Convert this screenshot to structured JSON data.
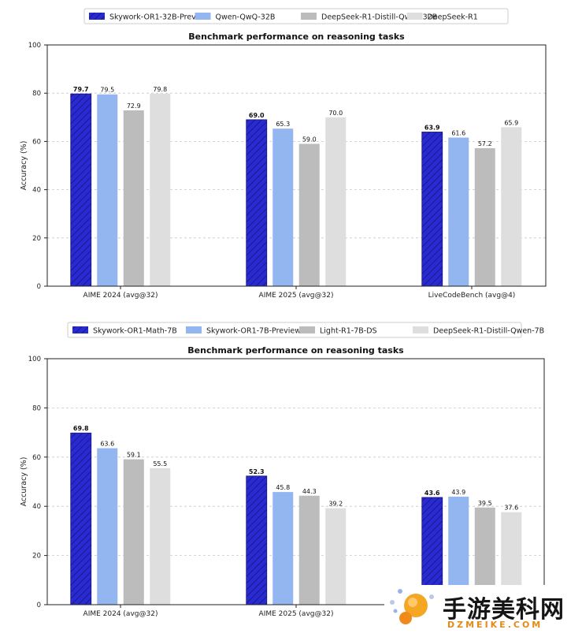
{
  "charts": [
    {
      "legend": [
        "Skywork-OR1-32B-Preview",
        "Qwen-QwQ-32B",
        "DeepSeek-R1-Distill-Qwen-32B",
        "DeepSeek-R1"
      ],
      "title": "Benchmark performance on reasoning tasks",
      "ylabel": "Accuracy (%)",
      "yticks": [
        "0",
        "20",
        "40",
        "60",
        "80",
        "100"
      ],
      "categories": [
        "AIME 2024 (avg@32)",
        "AIME 2025 (avg@32)",
        "LiveCodeBench (avg@4)"
      ],
      "value_labels": [
        [
          "79.7",
          "79.5",
          "72.9",
          "79.8"
        ],
        [
          "69.0",
          "65.3",
          "59.0",
          "70.0"
        ],
        [
          "63.9",
          "61.6",
          "57.2",
          "65.9"
        ]
      ]
    },
    {
      "legend": [
        "Skywork-OR1-Math-7B",
        "Skywork-OR1-7B-Preview",
        "Light-R1-7B-DS",
        "DeepSeek-R1-Distill-Qwen-7B"
      ],
      "title": "Benchmark performance on reasoning tasks",
      "ylabel": "Accuracy (%)",
      "yticks": [
        "0",
        "20",
        "40",
        "60",
        "80",
        "100"
      ],
      "categories": [
        "AIME 2024 (avg@32)",
        "AIME 2025 (avg@32)",
        ""
      ],
      "value_labels": [
        [
          "69.8",
          "63.6",
          "59.1",
          "55.5"
        ],
        [
          "52.3",
          "45.8",
          "44.3",
          "39.2"
        ],
        [
          "43.6",
          "43.9",
          "39.5",
          "37.6"
        ]
      ]
    }
  ],
  "chart_data": [
    {
      "type": "bar",
      "title": "Benchmark performance on reasoning tasks",
      "xlabel": "",
      "ylabel": "Accuracy (%)",
      "ylim": [
        0,
        100
      ],
      "grid": true,
      "legend_position": "top",
      "categories": [
        "AIME 2024 (avg@32)",
        "AIME 2025 (avg@32)",
        "LiveCodeBench (avg@4)"
      ],
      "series": [
        {
          "name": "Skywork-OR1-32B-Preview",
          "color": "#2a2ad2",
          "hatched": true,
          "values": [
            79.7,
            69.0,
            63.9
          ]
        },
        {
          "name": "Qwen-QwQ-32B",
          "color": "#93b5f0",
          "values": [
            79.5,
            65.3,
            61.6
          ]
        },
        {
          "name": "DeepSeek-R1-Distill-Qwen-32B",
          "color": "#bcbcbc",
          "values": [
            72.9,
            59.0,
            57.2
          ]
        },
        {
          "name": "DeepSeek-R1",
          "color": "#dedede",
          "values": [
            79.8,
            70.0,
            65.9
          ]
        }
      ]
    },
    {
      "type": "bar",
      "title": "Benchmark performance on reasoning tasks",
      "xlabel": "",
      "ylabel": "Accuracy (%)",
      "ylim": [
        0,
        100
      ],
      "grid": true,
      "legend_position": "top",
      "categories": [
        "AIME 2024 (avg@32)",
        "AIME 2025 (avg@32)",
        ""
      ],
      "series": [
        {
          "name": "Skywork-OR1-Math-7B",
          "color": "#2a2ad2",
          "hatched": true,
          "values": [
            69.8,
            52.3,
            43.6
          ]
        },
        {
          "name": "Skywork-OR1-7B-Preview",
          "color": "#93b5f0",
          "values": [
            63.6,
            45.8,
            43.9
          ]
        },
        {
          "name": "Light-R1-7B-DS",
          "color": "#bcbcbc",
          "values": [
            59.1,
            44.3,
            39.5
          ]
        },
        {
          "name": "DeepSeek-R1-Distill-Qwen-7B",
          "color": "#dedede",
          "values": [
            55.5,
            39.2,
            37.6
          ]
        }
      ]
    }
  ],
  "watermark": {
    "logo": "orange-ball-logo-icon",
    "cn_text": "手游美科网",
    "en_text": "DZMEIKE.COM"
  }
}
